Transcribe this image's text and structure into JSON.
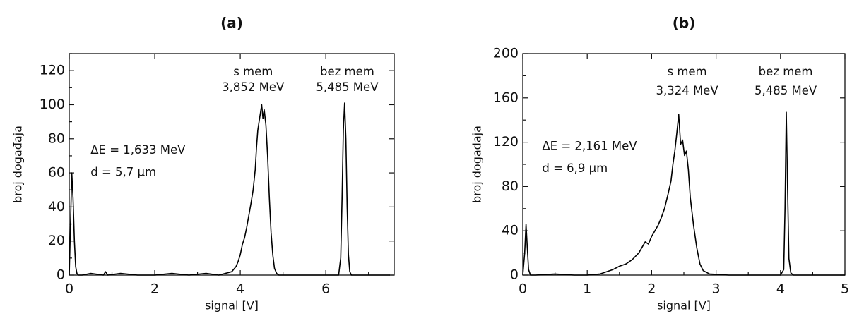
{
  "chart_data": [
    {
      "type": "line",
      "title": "(a)",
      "xlabel": "signal [V]",
      "ylabel": "broj događaja",
      "xlim": [
        0,
        7.6
      ],
      "ylim": [
        0,
        130
      ],
      "xticks": [
        0,
        2,
        4,
        6
      ],
      "yticks": [
        0,
        20,
        40,
        60,
        80,
        100,
        120
      ],
      "grid": false,
      "annotations": [
        {
          "text": "ΔE = 1,633 MeV",
          "x": 0.5,
          "y": 73
        },
        {
          "text": "d = 5,7 μm",
          "x": 0.5,
          "y": 60
        },
        {
          "text": "s mem",
          "x": 4.3,
          "y": 119
        },
        {
          "text": "3,852 MeV",
          "x": 4.3,
          "y": 110
        },
        {
          "text": "bez mem",
          "x": 6.5,
          "y": 119
        },
        {
          "text": "5,485 MeV",
          "x": 6.5,
          "y": 110
        }
      ],
      "series": [
        {
          "x": [
            0,
            0.03,
            0.06,
            0.09,
            0.12,
            0.15,
            0.18,
            0.21,
            0.3,
            0.5,
            0.8,
            0.85,
            0.9,
            1.2,
            1.6,
            2.0,
            2.4,
            2.8,
            3.2,
            3.5,
            3.8,
            3.9,
            3.95,
            4.0,
            4.05,
            4.1,
            4.15,
            4.2,
            4.25,
            4.3,
            4.35,
            4.38,
            4.41,
            4.44,
            4.47,
            4.5,
            4.53,
            4.56,
            4.6,
            4.64,
            4.68,
            4.72,
            4.76,
            4.8,
            4.85,
            4.9,
            5.0,
            5.5,
            6.0,
            6.3,
            6.35,
            6.38,
            6.41,
            6.44,
            6.47,
            6.5,
            6.53,
            6.56,
            6.6,
            6.8,
            7.5
          ],
          "y": [
            0,
            30,
            60,
            45,
            20,
            5,
            1,
            0,
            0,
            1,
            0,
            2,
            0,
            1,
            0,
            0,
            1,
            0,
            1,
            0,
            2,
            5,
            8,
            12,
            18,
            22,
            28,
            35,
            42,
            50,
            62,
            75,
            85,
            90,
            95,
            100,
            92,
            97,
            88,
            70,
            45,
            25,
            12,
            4,
            1,
            0,
            0,
            0,
            0,
            0,
            10,
            45,
            85,
            101,
            80,
            40,
            12,
            2,
            0,
            0,
            0
          ]
        }
      ]
    },
    {
      "type": "line",
      "title": "(b)",
      "xlabel": "signal [V]",
      "ylabel": "broj događaja",
      "xlim": [
        0,
        5
      ],
      "ylim": [
        0,
        200
      ],
      "xticks": [
        0,
        1,
        2,
        3,
        4,
        5
      ],
      "yticks": [
        0,
        40,
        80,
        120,
        160,
        200
      ],
      "grid": false,
      "annotations": [
        {
          "text": "ΔE = 2,161 MeV",
          "x": 0.3,
          "y": 116
        },
        {
          "text": "d = 6,9 μm",
          "x": 0.3,
          "y": 96
        },
        {
          "text": "s mem",
          "x": 2.55,
          "y": 183
        },
        {
          "text": "3,324 MeV",
          "x": 2.55,
          "y": 166
        },
        {
          "text": "bez mem",
          "x": 4.08,
          "y": 183
        },
        {
          "text": "5,485 MeV",
          "x": 4.08,
          "y": 166
        }
      ],
      "series": [
        {
          "x": [
            0,
            0.03,
            0.05,
            0.07,
            0.09,
            0.12,
            0.2,
            0.5,
            0.8,
            1.0,
            1.2,
            1.3,
            1.4,
            1.5,
            1.6,
            1.7,
            1.8,
            1.85,
            1.9,
            1.95,
            2.0,
            2.05,
            2.1,
            2.15,
            2.2,
            2.25,
            2.3,
            2.33,
            2.36,
            2.39,
            2.42,
            2.45,
            2.48,
            2.51,
            2.54,
            2.57,
            2.6,
            2.65,
            2.7,
            2.75,
            2.8,
            2.9,
            3.2,
            3.6,
            4.0,
            4.05,
            4.07,
            4.09,
            4.11,
            4.13,
            4.16,
            4.2,
            4.6,
            5.0
          ],
          "y": [
            0,
            20,
            46,
            25,
            5,
            0,
            0,
            1,
            0,
            0,
            1,
            3,
            5,
            8,
            10,
            14,
            20,
            25,
            30,
            28,
            35,
            40,
            45,
            52,
            60,
            72,
            85,
            100,
            112,
            128,
            145,
            118,
            122,
            108,
            112,
            95,
            70,
            45,
            25,
            10,
            4,
            1,
            0,
            0,
            0,
            5,
            60,
            147,
            80,
            15,
            2,
            0,
            0,
            0
          ]
        }
      ]
    }
  ]
}
